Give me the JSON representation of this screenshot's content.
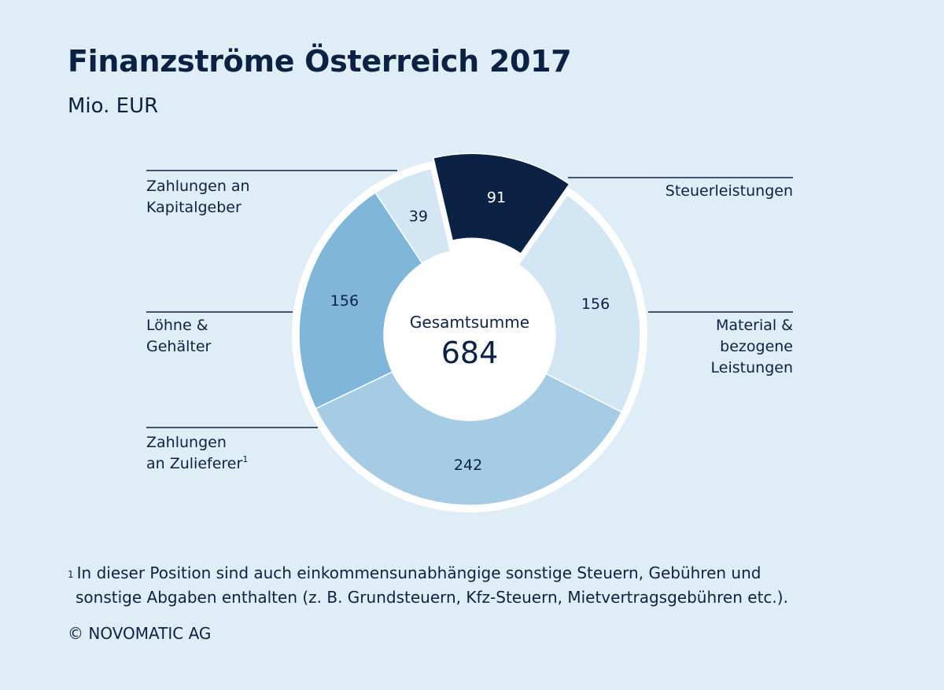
{
  "chart_data": {
    "type": "pie",
    "title": "Finanzströme Österreich 2017",
    "subtitle": "Mio. EUR",
    "center_label": "Gesamtsumme",
    "total": "684",
    "slices": [
      {
        "value": 91,
        "label_lines": [
          "Steuerleistungen"
        ],
        "color": "#0c2244",
        "text_color": "#ffffff"
      },
      {
        "value": 156,
        "label_lines": [
          "Material &",
          "bezogene",
          "Leistungen"
        ],
        "color": "#d3e6f3",
        "text_color": "#0c2244"
      },
      {
        "value": 242,
        "label_lines": [
          "Zahlungen",
          "an Zulieferer"
        ],
        "sup": "1",
        "color": "#a6cbe4",
        "text_color": "#0c2244"
      },
      {
        "value": 156,
        "label_lines": [
          "Löhne &",
          "Gehälter"
        ],
        "color": "#7fb6da",
        "text_color": "#0c2244"
      },
      {
        "value": 39,
        "label_lines": [
          "Zahlungen an",
          "Kapitalgeber"
        ],
        "color": "#d3e6f3",
        "text_color": "#0c2244"
      }
    ]
  },
  "footnote": {
    "marker": "1",
    "line1": "In dieser Position sind auch einkommensunabhängige sonstige Steuern, Gebühren und",
    "line2": "sonstige Abgaben enthalten (z. B. Grundsteuern, Kfz-Steuern, Mietvertragsgebühren etc.)."
  },
  "copyright": "© NOVOMATIC AG",
  "colors": {
    "background": "#dfedf6",
    "text": "#0c2244"
  }
}
